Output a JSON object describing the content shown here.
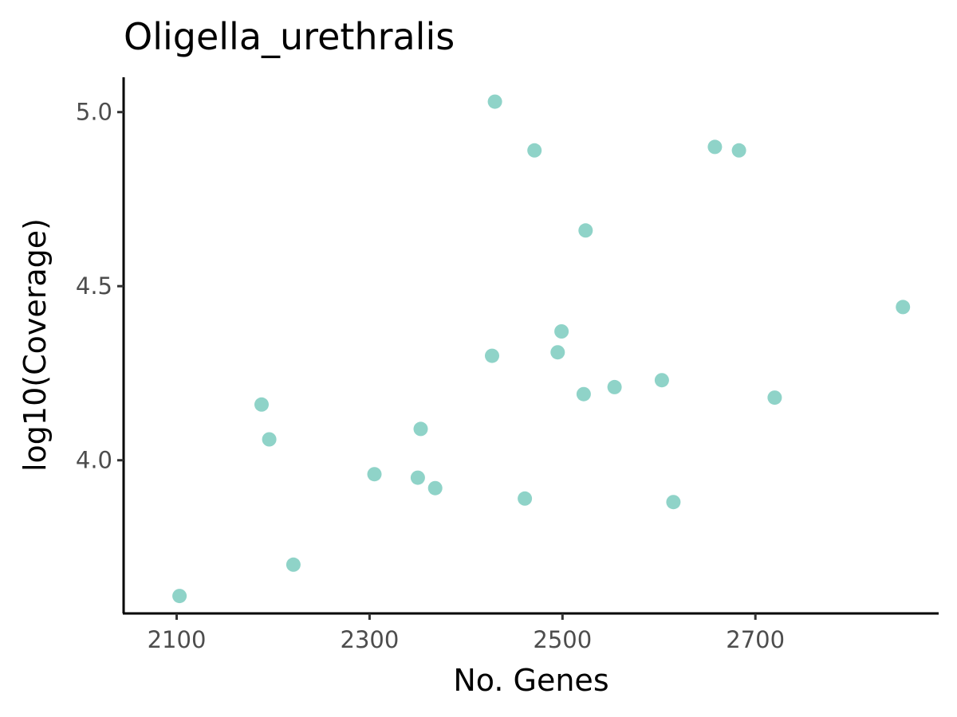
{
  "chart_data": {
    "type": "scatter",
    "title": "Oligella_urethralis",
    "xlabel": "No. Genes",
    "ylabel": "log10(Coverage)",
    "xlim": [
      2045,
      2890
    ],
    "ylim": [
      3.56,
      5.1
    ],
    "xticks": [
      2100,
      2300,
      2500,
      2700
    ],
    "xtick_labels": [
      "2100",
      "2300",
      "2500",
      "2700"
    ],
    "yticks": [
      4.0,
      4.5,
      5.0
    ],
    "ytick_labels": [
      "4.0",
      "4.5",
      "5.0"
    ],
    "grid": false,
    "legend": false,
    "point_color": "#8fd3c8",
    "points": [
      {
        "x": 2103,
        "y": 3.61
      },
      {
        "x": 2188,
        "y": 4.16
      },
      {
        "x": 2196,
        "y": 4.06
      },
      {
        "x": 2221,
        "y": 3.7
      },
      {
        "x": 2305,
        "y": 3.96
      },
      {
        "x": 2350,
        "y": 3.95
      },
      {
        "x": 2353,
        "y": 4.09
      },
      {
        "x": 2368,
        "y": 3.92
      },
      {
        "x": 2427,
        "y": 4.3
      },
      {
        "x": 2430,
        "y": 5.03
      },
      {
        "x": 2461,
        "y": 3.89
      },
      {
        "x": 2471,
        "y": 4.89
      },
      {
        "x": 2495,
        "y": 4.31
      },
      {
        "x": 2499,
        "y": 4.37
      },
      {
        "x": 2522,
        "y": 4.19
      },
      {
        "x": 2524,
        "y": 4.66
      },
      {
        "x": 2554,
        "y": 4.21
      },
      {
        "x": 2603,
        "y": 4.23
      },
      {
        "x": 2615,
        "y": 3.88
      },
      {
        "x": 2658,
        "y": 4.9
      },
      {
        "x": 2683,
        "y": 4.89
      },
      {
        "x": 2720,
        "y": 4.18
      },
      {
        "x": 2853,
        "y": 4.44
      }
    ]
  }
}
